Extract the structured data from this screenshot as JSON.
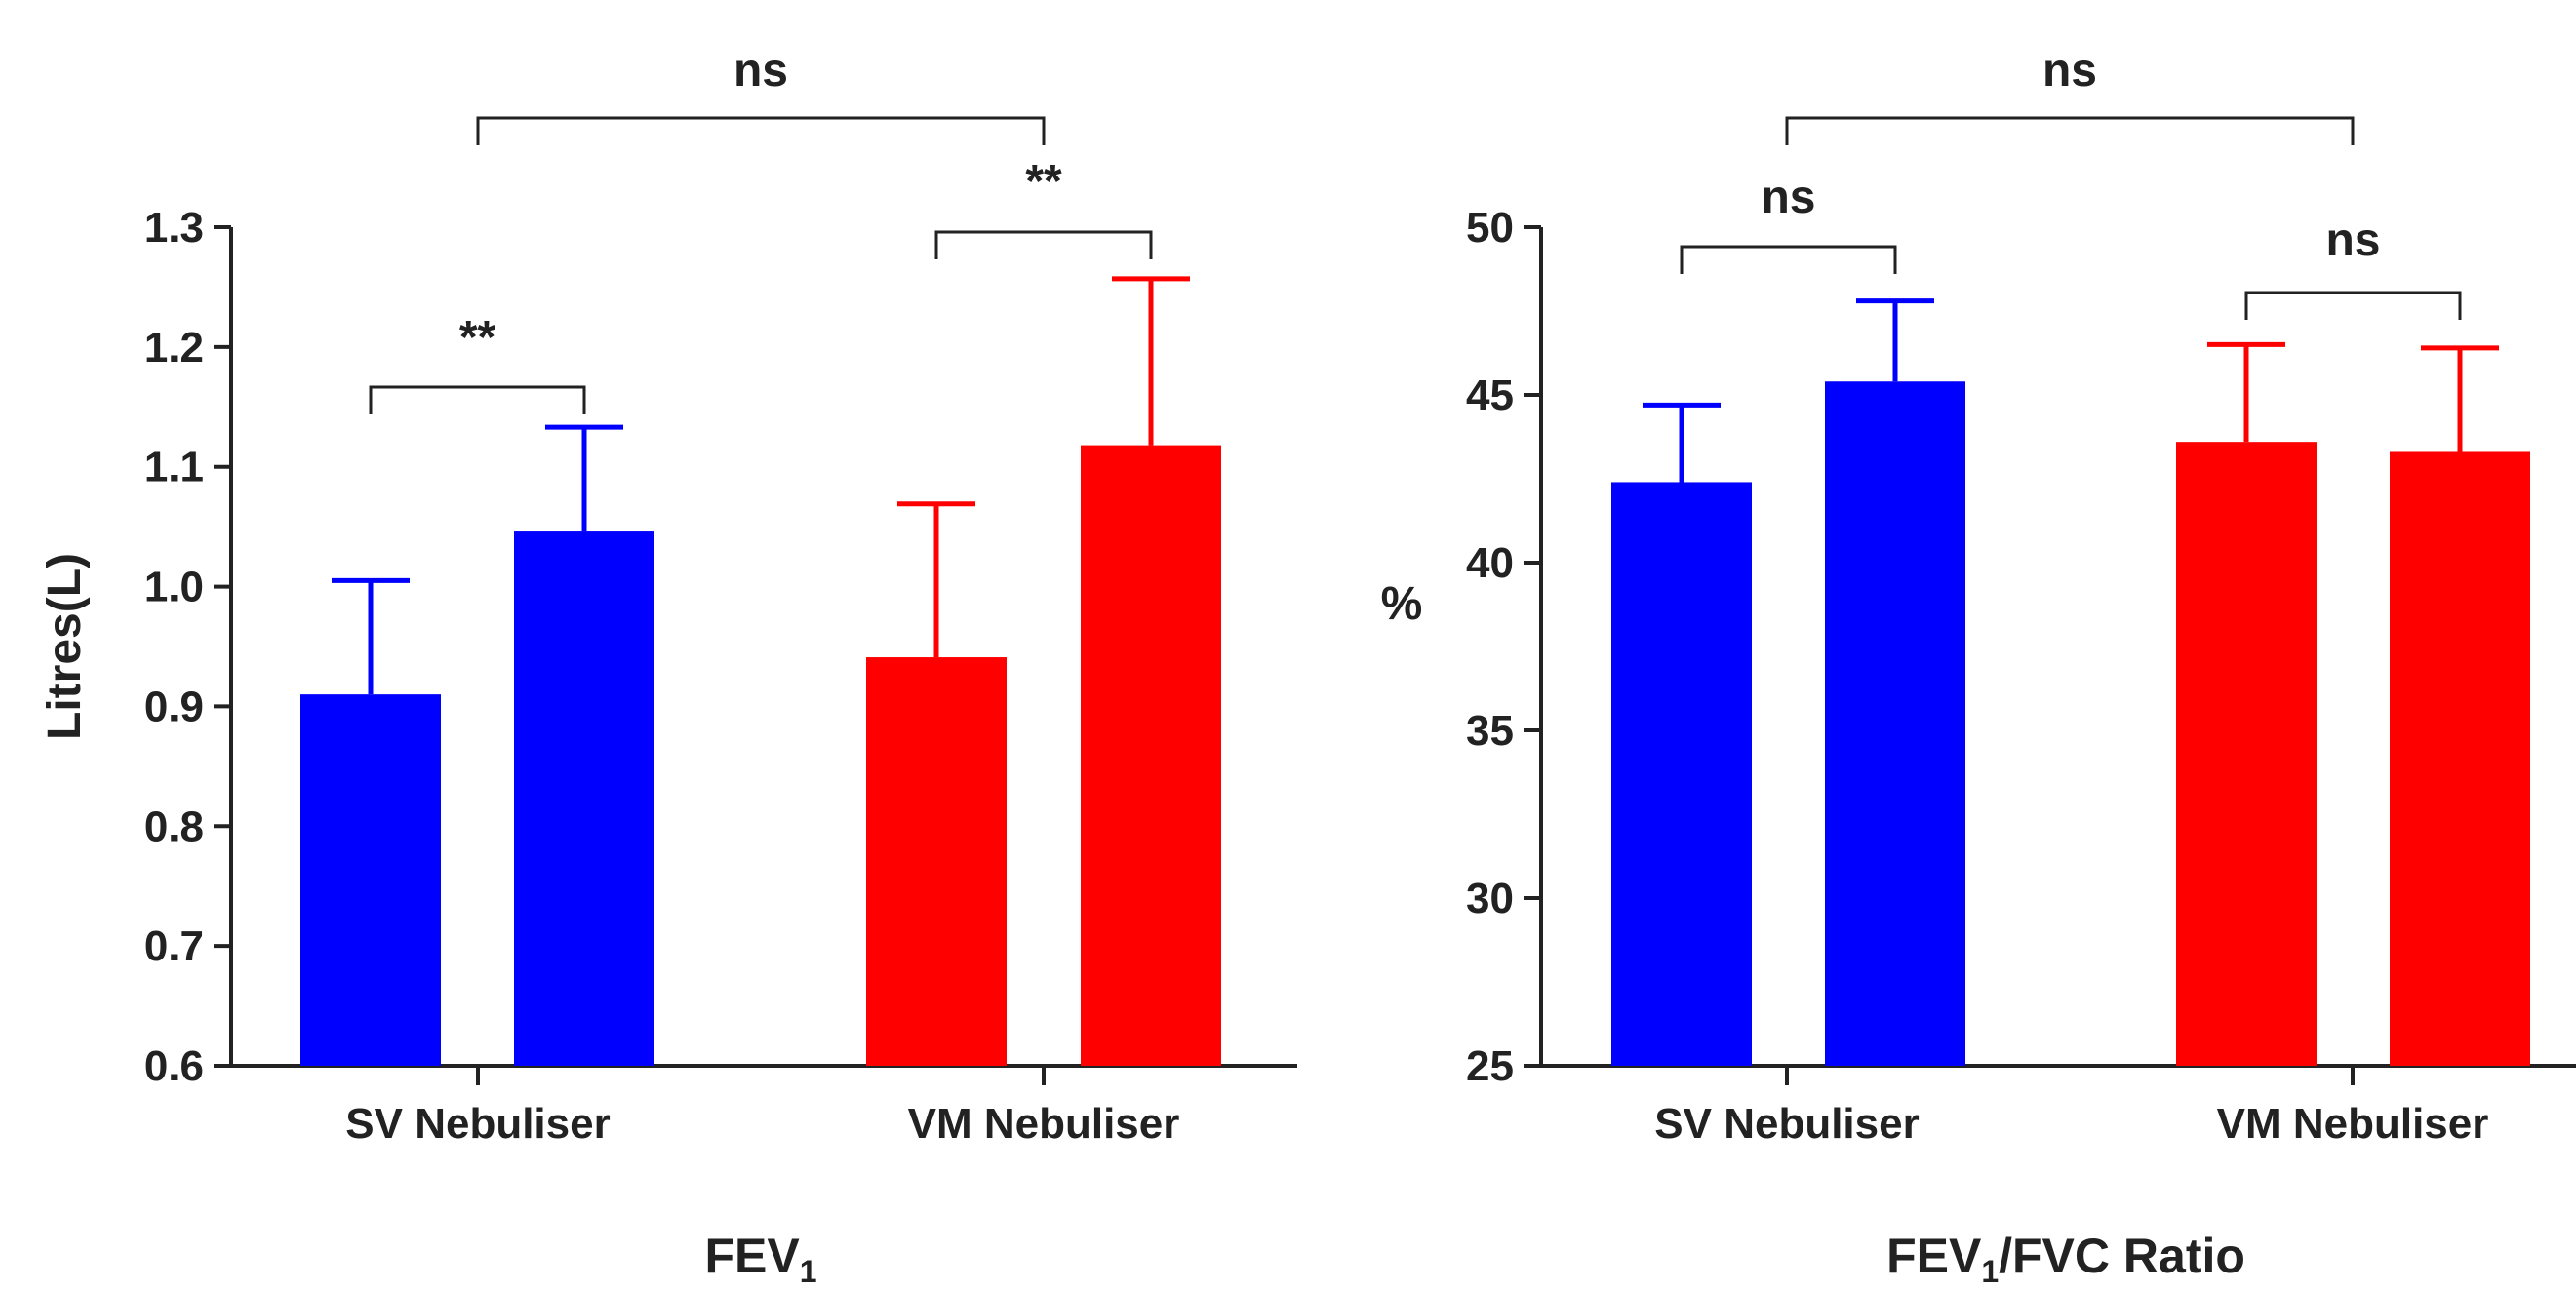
{
  "colors": {
    "blue": "#0000ff",
    "red": "#ff0000",
    "axis": "#222222"
  },
  "chart_data": [
    {
      "type": "bar",
      "title": "",
      "xlabel": {
        "text": "FEV",
        "subscript": "1",
        "suffix": ""
      },
      "ylabel": "Litres(L)",
      "ylim": [
        0.6,
        1.3
      ],
      "yticks": [
        "0.6",
        "0.7",
        "0.8",
        "0.9",
        "1.0",
        "1.1",
        "1.2",
        "1.3"
      ],
      "groups": [
        "SV Nebuliser",
        "VM Nebuliser"
      ],
      "bars": [
        {
          "group": 0,
          "value": 0.91,
          "error": 0.095,
          "color": "blue"
        },
        {
          "group": 0,
          "value": 1.046,
          "error": 0.087,
          "color": "blue"
        },
        {
          "group": 1,
          "value": 0.941,
          "error": 0.128,
          "color": "red"
        },
        {
          "group": 1,
          "value": 1.118,
          "error": 0.139,
          "color": "red"
        }
      ],
      "significance": [
        {
          "bars": [
            0,
            1
          ],
          "label": "**"
        },
        {
          "bars": [
            2,
            3
          ],
          "label": "**"
        },
        {
          "groups": [
            0,
            1
          ],
          "label": "ns"
        }
      ]
    },
    {
      "type": "bar",
      "title": "",
      "xlabel": {
        "text": "FEV",
        "subscript": "1",
        "suffix": "/FVC Ratio"
      },
      "ylabel": "%",
      "ylim": [
        25,
        50
      ],
      "yticks": [
        "25",
        "30",
        "35",
        "40",
        "45",
        "50"
      ],
      "groups": [
        "SV Nebuliser",
        "VM Nebuliser"
      ],
      "bars": [
        {
          "group": 0,
          "value": 42.4,
          "error": 2.3,
          "color": "blue"
        },
        {
          "group": 0,
          "value": 45.4,
          "error": 2.4,
          "color": "blue"
        },
        {
          "group": 1,
          "value": 43.6,
          "error": 2.9,
          "color": "red"
        },
        {
          "group": 1,
          "value": 43.3,
          "error": 3.1,
          "color": "red"
        }
      ],
      "significance": [
        {
          "bars": [
            0,
            1
          ],
          "label": "ns"
        },
        {
          "bars": [
            2,
            3
          ],
          "label": "ns"
        },
        {
          "groups": [
            0,
            1
          ],
          "label": "ns"
        }
      ]
    }
  ]
}
